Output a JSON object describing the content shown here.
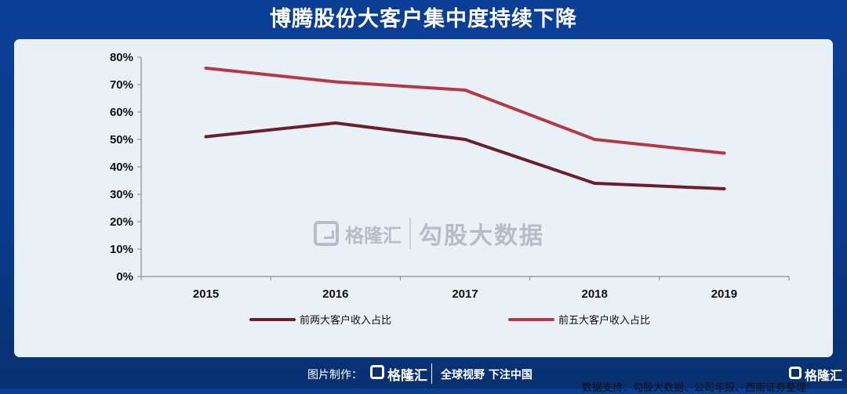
{
  "title": "博腾股份大客户集中度持续下降",
  "watermark": {
    "brand": "格隆汇",
    "text": "勾股大数据"
  },
  "source": "数据支持：勾股大数据、公司年报、西南证券整理",
  "footer": {
    "made_by": "图片制作：",
    "brand": "格隆汇",
    "slogan": "全球视野 下注中国",
    "corner_brand": "格隆汇"
  },
  "colors": {
    "series_1": "#6b1f2a",
    "series_2": "#b33a44",
    "panel_bg": "#e9f0f6",
    "page_bg": "#0b3f96"
  },
  "chart_data": {
    "type": "line",
    "categories": [
      "2015",
      "2016",
      "2017",
      "2018",
      "2019"
    ],
    "series": [
      {
        "name": "前两大客户收入占比",
        "values": [
          0.51,
          0.56,
          0.5,
          0.34,
          0.32
        ]
      },
      {
        "name": "前五大客户收入占比",
        "values": [
          0.76,
          0.71,
          0.68,
          0.5,
          0.45
        ]
      }
    ],
    "y_ticks": [
      "0%",
      "10%",
      "20%",
      "30%",
      "40%",
      "50%",
      "60%",
      "70%",
      "80%"
    ],
    "ylim": [
      0,
      0.8
    ],
    "grid": false,
    "legend_position": "bottom"
  }
}
